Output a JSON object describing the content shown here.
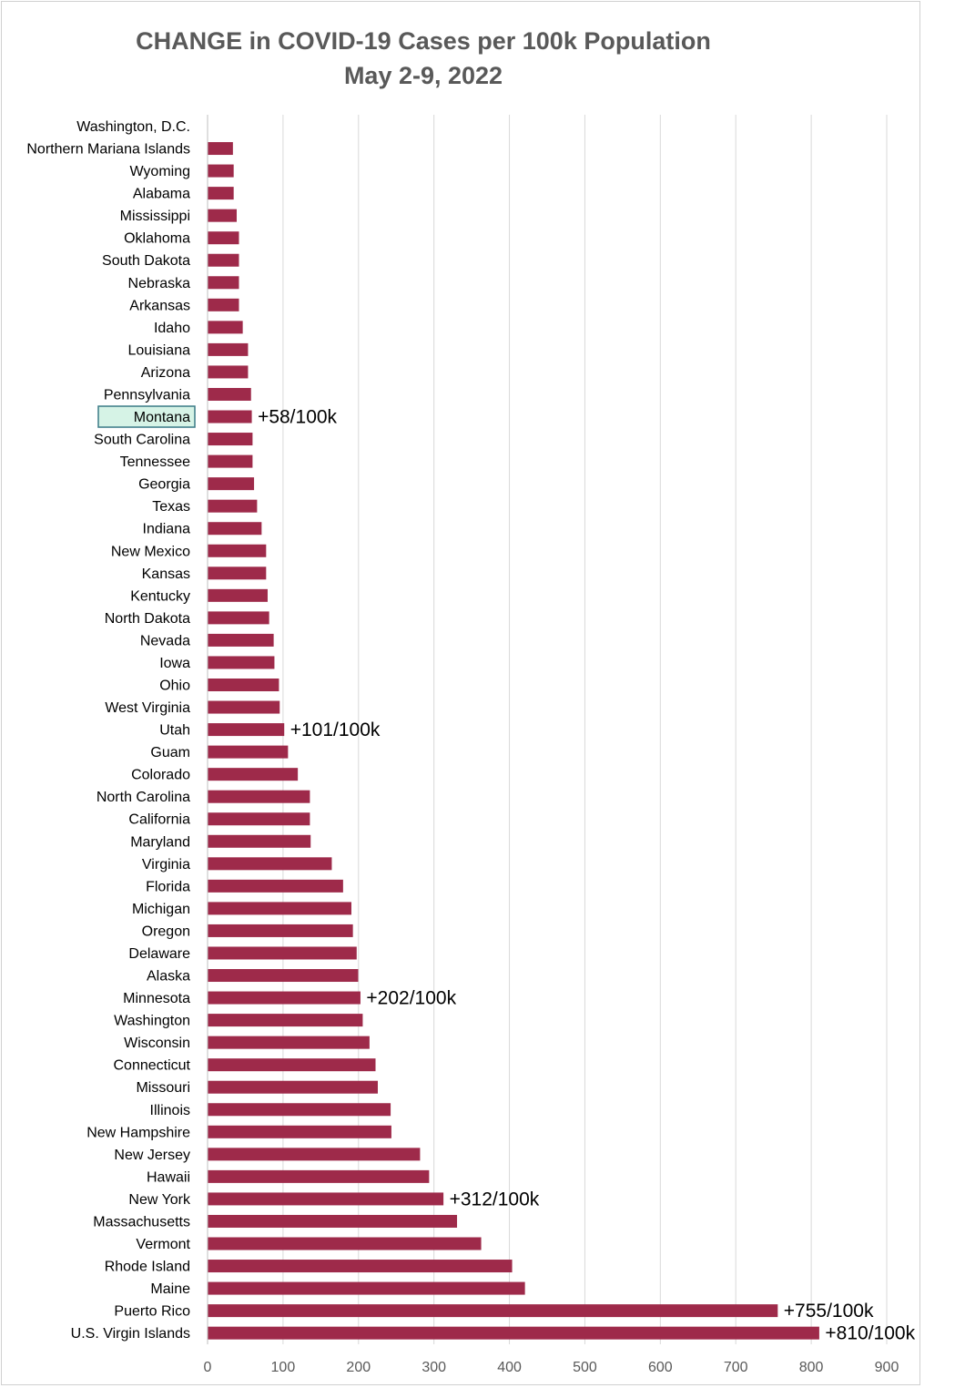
{
  "chart_data": {
    "type": "bar",
    "orientation": "horizontal",
    "title": "CHANGE in COVID-19 Cases per 100k Population",
    "subtitle": "May 2-9, 2022",
    "xlim": [
      0,
      900
    ],
    "xticks": [
      0,
      100,
      200,
      300,
      400,
      500,
      600,
      700,
      800,
      900
    ],
    "gridlines": true,
    "bar_color": "#9e2a4a",
    "highlight_color": "#d6f3e6",
    "highlight_border": "#3a7a86",
    "categories": [
      "Washington, D.C.",
      "Northern Mariana Islands",
      "Wyoming",
      "Alabama",
      "Mississippi",
      "Oklahoma",
      "South Dakota",
      "Nebraska",
      "Arkansas",
      "Idaho",
      "Louisiana",
      "Arizona",
      "Pennsylvania",
      "Montana",
      "South Carolina",
      "Tennessee",
      "Georgia",
      "Texas",
      "Indiana",
      "New Mexico",
      "Kansas",
      "Kentucky",
      "North Dakota",
      "Nevada",
      "Iowa",
      "Ohio",
      "West Virginia",
      "Utah",
      "Guam",
      "Colorado",
      "North Carolina",
      "California",
      "Maryland",
      "Virginia",
      "Florida",
      "Michigan",
      "Oregon",
      "Delaware",
      "Alaska",
      "Minnesota",
      "Washington",
      "Wisconsin",
      "Connecticut",
      "Missouri",
      "Illinois",
      "New Hampshire",
      "New Jersey",
      "Hawaii",
      "New York",
      "Massachusetts",
      "Vermont",
      "Rhode Island",
      "Maine",
      "Puerto Rico",
      "U.S. Virgin Islands"
    ],
    "values": [
      0,
      33,
      34,
      34,
      38,
      41,
      41,
      41,
      41,
      46,
      53,
      53,
      57,
      58,
      59,
      59,
      61,
      65,
      71,
      77,
      77,
      79,
      81,
      87,
      88,
      94,
      95,
      101,
      106,
      119,
      135,
      135,
      136,
      164,
      179,
      190,
      192,
      197,
      199,
      202,
      205,
      214,
      222,
      225,
      242,
      243,
      281,
      293,
      312,
      330,
      362,
      403,
      420,
      755,
      810
    ],
    "highlighted_category": "Montana",
    "annotations": [
      {
        "category": "Montana",
        "text": "+58/100k"
      },
      {
        "category": "Utah",
        "text": "+101/100k"
      },
      {
        "category": "Minnesota",
        "text": "+202/100k"
      },
      {
        "category": "New York",
        "text": "+312/100k"
      },
      {
        "category": "Puerto Rico",
        "text": "+755/100k"
      },
      {
        "category": "U.S. Virgin Islands",
        "text": "+810/100k"
      }
    ]
  }
}
